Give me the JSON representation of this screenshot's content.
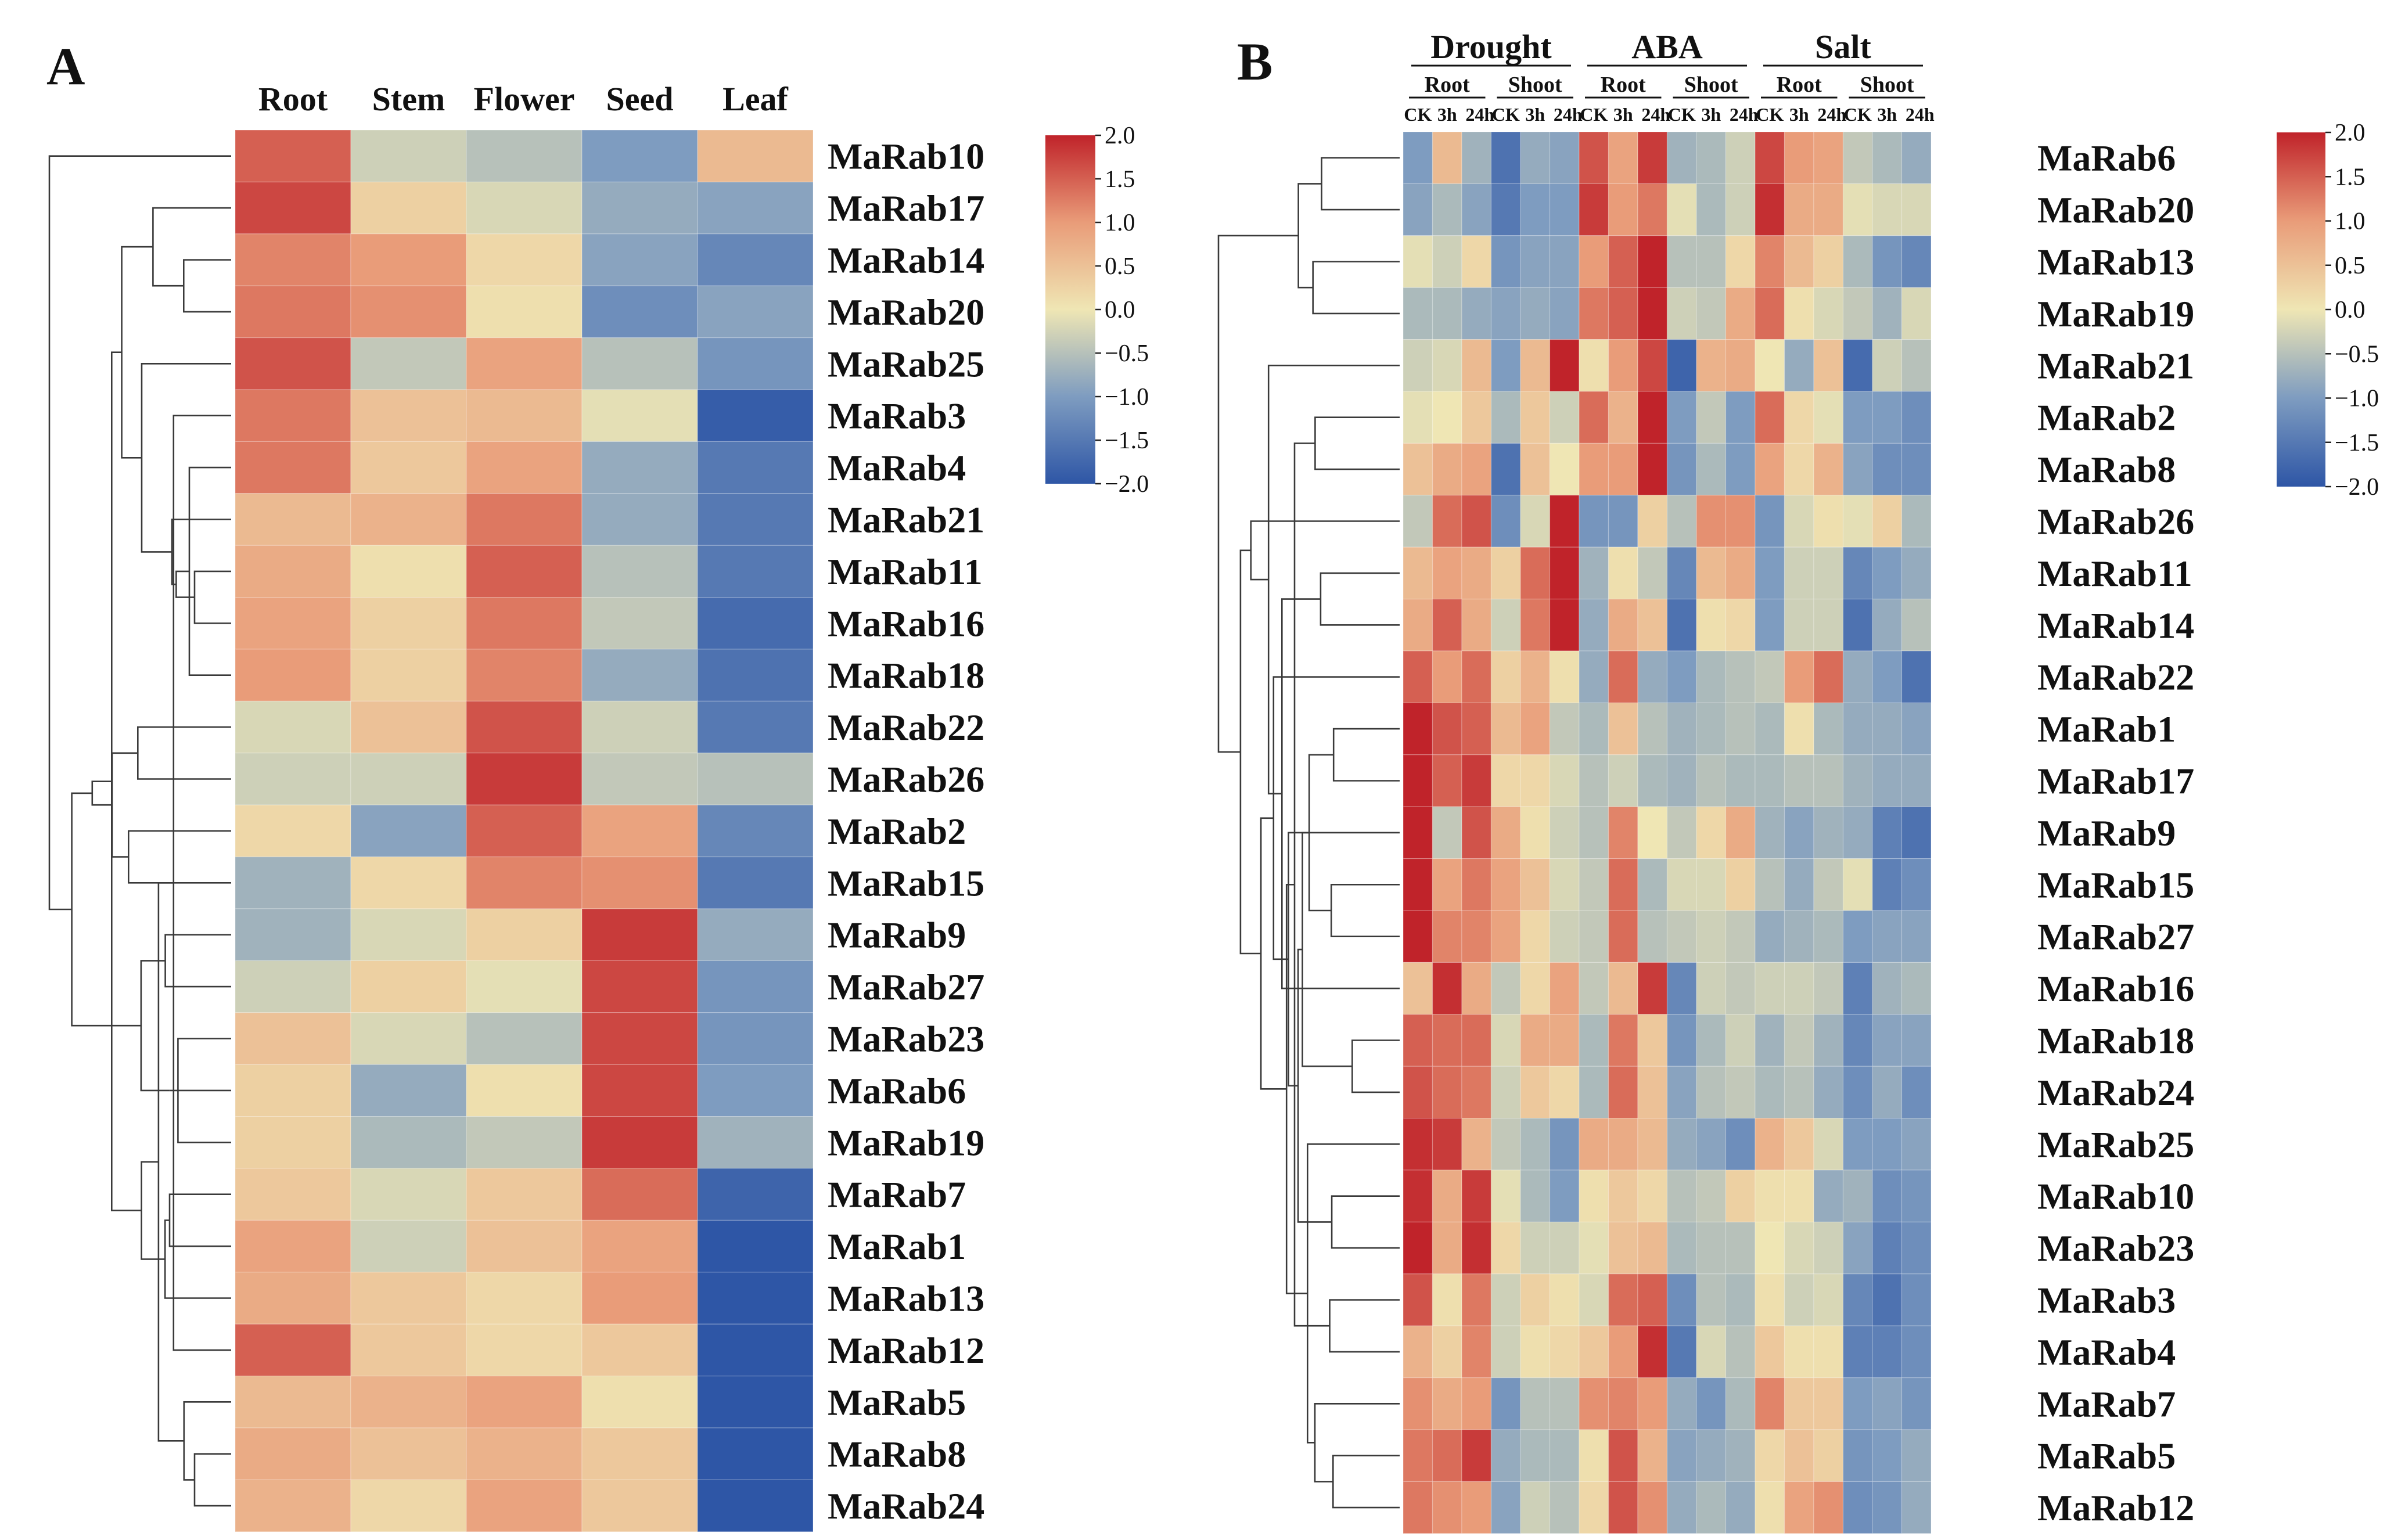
{
  "panel_a": {
    "label": "A",
    "columns": [
      "Root",
      "Stem",
      "Flower",
      "Seed",
      "Leaf"
    ],
    "rows": [
      "MaRab10",
      "MaRab17",
      "MaRab14",
      "MaRab20",
      "MaRab25",
      "MaRab3",
      "MaRab4",
      "MaRab21",
      "MaRab11",
      "MaRab16",
      "MaRab18",
      "MaRab22",
      "MaRab26",
      "MaRab2",
      "MaRab15",
      "MaRab9",
      "MaRab27",
      "MaRab23",
      "MaRab6",
      "MaRab19",
      "MaRab7",
      "MaRab1",
      "MaRab13",
      "MaRab12",
      "MaRab5",
      "MaRab8",
      "MaRab24"
    ]
  },
  "panel_b": {
    "label": "B",
    "treatments": [
      "Drought",
      "ABA",
      "Salt"
    ],
    "tissues": [
      "Root",
      "Shoot"
    ],
    "timepoints": [
      "CK",
      "3h",
      "24h"
    ],
    "rows": [
      "MaRab6",
      "MaRab20",
      "MaRab13",
      "MaRab19",
      "MaRab21",
      "MaRab2",
      "MaRab8",
      "MaRab26",
      "MaRab11",
      "MaRab14",
      "MaRab22",
      "MaRab1",
      "MaRab17",
      "MaRab9",
      "MaRab15",
      "MaRab27",
      "MaRab16",
      "MaRab18",
      "MaRab24",
      "MaRab25",
      "MaRab10",
      "MaRab23",
      "MaRab3",
      "MaRab4",
      "MaRab7",
      "MaRab5",
      "MaRab12"
    ]
  },
  "legend": {
    "ticks": [
      "2.0",
      "1.5",
      "1.0",
      "0.5",
      "0.0",
      "−0.5",
      "−1.0",
      "−1.5",
      "−2.0"
    ],
    "tick_values": [
      2.0,
      1.5,
      1.0,
      0.5,
      0.0,
      -0.5,
      -1.0,
      -1.5,
      -2.0
    ],
    "colors": [
      "#2e56a6",
      "#7e9cc0",
      "#efe6b4",
      "#e99c79",
      "#c0232a"
    ]
  },
  "chart_data": [
    {
      "type": "heatmap",
      "title": "A",
      "xlabel": "",
      "ylabel": "",
      "columns": [
        "Root",
        "Stem",
        "Flower",
        "Seed",
        "Leaf"
      ],
      "rows": [
        "MaRab10",
        "MaRab17",
        "MaRab14",
        "MaRab20",
        "MaRab25",
        "MaRab3",
        "MaRab4",
        "MaRab21",
        "MaRab11",
        "MaRab16",
        "MaRab18",
        "MaRab22",
        "MaRab26",
        "MaRab2",
        "MaRab15",
        "MaRab9",
        "MaRab27",
        "MaRab23",
        "MaRab6",
        "MaRab19",
        "MaRab7",
        "MaRab1",
        "MaRab13",
        "MaRab12",
        "MaRab5",
        "MaRab8",
        "MaRab24"
      ],
      "values": [
        [
          1.5,
          -0.3,
          -0.5,
          -1.0,
          0.6
        ],
        [
          1.7,
          0.3,
          -0.2,
          -0.8,
          -0.9
        ],
        [
          1.2,
          1.0,
          0.2,
          -0.9,
          -1.3
        ],
        [
          1.3,
          1.1,
          0.1,
          -1.2,
          -0.9
        ],
        [
          1.6,
          -0.4,
          0.9,
          -0.5,
          -1.1
        ],
        [
          1.3,
          0.5,
          0.6,
          -0.1,
          -1.9
        ],
        [
          1.3,
          0.4,
          0.9,
          -0.8,
          -1.5
        ],
        [
          0.6,
          0.7,
          1.3,
          -0.8,
          -1.5
        ],
        [
          0.8,
          0.1,
          1.5,
          -0.5,
          -1.5
        ],
        [
          0.9,
          0.3,
          1.3,
          -0.4,
          -1.7
        ],
        [
          1.0,
          0.3,
          1.2,
          -0.8,
          -1.6
        ],
        [
          -0.2,
          0.5,
          1.6,
          -0.3,
          -1.5
        ],
        [
          -0.3,
          -0.3,
          1.8,
          -0.4,
          -0.5
        ],
        [
          0.2,
          -0.9,
          1.5,
          0.9,
          -1.3
        ],
        [
          -0.7,
          0.2,
          1.2,
          1.1,
          -1.5
        ],
        [
          -0.7,
          -0.2,
          0.3,
          1.8,
          -0.8
        ],
        [
          -0.3,
          0.3,
          -0.1,
          1.7,
          -1.1
        ],
        [
          0.5,
          -0.2,
          -0.5,
          1.7,
          -1.1
        ],
        [
          0.3,
          -0.8,
          0.1,
          1.7,
          -1.0
        ],
        [
          0.3,
          -0.6,
          -0.4,
          1.8,
          -0.7
        ],
        [
          0.4,
          -0.2,
          0.4,
          1.4,
          -1.8
        ],
        [
          0.9,
          -0.3,
          0.5,
          0.9,
          -2.0
        ],
        [
          0.8,
          0.4,
          0.2,
          1.0,
          -2.0
        ],
        [
          1.5,
          0.4,
          0.2,
          0.4,
          -2.0
        ],
        [
          0.6,
          0.7,
          0.9,
          0.1,
          -2.0
        ],
        [
          0.8,
          0.5,
          0.7,
          0.4,
          -2.0
        ],
        [
          0.7,
          0.2,
          0.9,
          0.4,
          -2.0
        ]
      ],
      "value_range": [
        -2.0,
        2.0
      ],
      "legend": "top-right"
    },
    {
      "type": "heatmap",
      "title": "B",
      "xlabel": "",
      "ylabel": "",
      "column_groups": [
        {
          "treatment": "Drought",
          "tissue": "Root",
          "times": [
            "CK",
            "3h",
            "24h"
          ]
        },
        {
          "treatment": "Drought",
          "tissue": "Shoot",
          "times": [
            "CK",
            "3h",
            "24h"
          ]
        },
        {
          "treatment": "ABA",
          "tissue": "Root",
          "times": [
            "CK",
            "3h",
            "24h"
          ]
        },
        {
          "treatment": "ABA",
          "tissue": "Shoot",
          "times": [
            "CK",
            "3h",
            "24h"
          ]
        },
        {
          "treatment": "Salt",
          "tissue": "Root",
          "times": [
            "CK",
            "3h",
            "24h"
          ]
        },
        {
          "treatment": "Salt",
          "tissue": "Shoot",
          "times": [
            "CK",
            "3h",
            "24h"
          ]
        }
      ],
      "rows": [
        "MaRab6",
        "MaRab20",
        "MaRab13",
        "MaRab19",
        "MaRab21",
        "MaRab2",
        "MaRab8",
        "MaRab26",
        "MaRab11",
        "MaRab14",
        "MaRab22",
        "MaRab1",
        "MaRab17",
        "MaRab9",
        "MaRab15",
        "MaRab27",
        "MaRab16",
        "MaRab18",
        "MaRab24",
        "MaRab25",
        "MaRab10",
        "MaRab23",
        "MaRab3",
        "MaRab4",
        "MaRab7",
        "MaRab5",
        "MaRab12"
      ],
      "values": [
        [
          -1.0,
          0.6,
          -0.7,
          -1.6,
          -0.8,
          -0.9,
          1.6,
          0.9,
          1.8,
          -0.7,
          -0.6,
          -0.3,
          1.7,
          1.0,
          0.9,
          -0.4,
          -0.6,
          -0.8
        ],
        [
          -0.9,
          -0.6,
          -0.9,
          -1.5,
          -1.0,
          -1.0,
          1.8,
          1.0,
          1.3,
          -0.1,
          -0.6,
          -0.3,
          1.9,
          0.8,
          0.8,
          -0.1,
          -0.2,
          -0.2
        ],
        [
          -0.1,
          -0.3,
          0.2,
          -1.1,
          -0.9,
          -0.9,
          1.0,
          1.5,
          2.0,
          -0.5,
          -0.5,
          0.2,
          1.2,
          0.6,
          0.3,
          -0.6,
          -1.1,
          -1.3
        ],
        [
          -0.6,
          -0.6,
          -0.8,
          -0.9,
          -0.8,
          -0.9,
          1.3,
          1.5,
          2.0,
          -0.3,
          -0.4,
          0.8,
          1.4,
          0.1,
          -0.2,
          -0.4,
          -0.7,
          -0.2
        ],
        [
          -0.3,
          -0.2,
          0.6,
          -1.0,
          0.6,
          2.0,
          0.1,
          1.0,
          1.7,
          -1.8,
          0.7,
          0.8,
          0.0,
          -0.8,
          0.5,
          -1.7,
          -0.3,
          -0.5
        ],
        [
          -0.1,
          0.0,
          0.4,
          -0.6,
          0.4,
          -0.3,
          1.4,
          0.7,
          2.0,
          -1.0,
          -0.4,
          -1.0,
          1.4,
          0.2,
          -0.1,
          -1.0,
          -1.0,
          -1.2
        ],
        [
          0.5,
          0.8,
          0.9,
          -1.6,
          0.5,
          0.0,
          1.0,
          1.0,
          2.0,
          -1.1,
          -0.6,
          -1.0,
          0.9,
          0.2,
          0.7,
          -0.9,
          -1.2,
          -1.2
        ],
        [
          -0.4,
          1.4,
          1.6,
          -1.2,
          -0.2,
          2.0,
          -1.1,
          -1.1,
          0.3,
          -0.5,
          1.1,
          1.1,
          -1.1,
          -0.2,
          0.1,
          -0.1,
          0.3,
          -0.6
        ],
        [
          0.6,
          0.9,
          0.8,
          0.3,
          1.4,
          2.0,
          -0.7,
          0.1,
          -0.4,
          -1.3,
          0.6,
          0.8,
          -1.0,
          -0.3,
          -0.3,
          -1.3,
          -1.0,
          -0.8
        ],
        [
          0.8,
          1.5,
          0.8,
          -0.3,
          1.3,
          2.0,
          -0.8,
          0.8,
          0.5,
          -1.6,
          0.1,
          0.2,
          -1.0,
          -0.3,
          -0.3,
          -1.6,
          -0.8,
          -0.5
        ],
        [
          1.5,
          1.0,
          1.4,
          0.3,
          0.7,
          0.1,
          -0.8,
          1.4,
          -0.8,
          -1.0,
          -0.6,
          -0.5,
          -0.4,
          1.0,
          1.4,
          -0.8,
          -1.0,
          -1.6
        ],
        [
          2.0,
          1.6,
          1.5,
          0.6,
          0.9,
          -0.4,
          -0.6,
          0.5,
          -0.5,
          -0.7,
          -0.6,
          -0.5,
          -0.6,
          0.1,
          -0.6,
          -0.8,
          -0.8,
          -0.9
        ],
        [
          2.0,
          1.5,
          1.8,
          0.2,
          0.2,
          -0.2,
          -0.5,
          -0.3,
          -0.6,
          -0.7,
          -0.5,
          -0.6,
          -0.6,
          -0.5,
          -0.5,
          -0.7,
          -0.8,
          -0.8
        ],
        [
          2.0,
          -0.4,
          1.6,
          0.8,
          0.1,
          -0.3,
          -0.5,
          1.2,
          0.0,
          -0.4,
          0.2,
          0.8,
          -0.7,
          -0.9,
          -0.7,
          -0.8,
          -1.4,
          -1.6
        ],
        [
          2.0,
          0.9,
          1.3,
          0.9,
          0.5,
          -0.2,
          -0.4,
          1.4,
          -0.6,
          -0.2,
          -0.2,
          0.3,
          -0.5,
          -0.8,
          -0.4,
          -0.1,
          -1.4,
          -1.2
        ],
        [
          2.0,
          1.2,
          1.2,
          0.9,
          0.2,
          -0.3,
          -0.4,
          1.4,
          -0.5,
          -0.4,
          -0.3,
          -0.4,
          -0.8,
          -0.7,
          -0.6,
          -1.0,
          -0.9,
          -0.9
        ],
        [
          0.5,
          1.9,
          0.8,
          -0.4,
          0.2,
          0.9,
          -0.4,
          0.6,
          1.8,
          -1.3,
          -0.3,
          -0.4,
          -0.3,
          -0.3,
          -0.4,
          -1.4,
          -0.7,
          -0.6
        ],
        [
          1.5,
          1.4,
          1.4,
          -0.2,
          0.8,
          0.8,
          -0.6,
          1.3,
          0.4,
          -1.1,
          -0.6,
          -0.3,
          -0.7,
          -0.4,
          -0.7,
          -1.3,
          -0.9,
          -0.9
        ],
        [
          1.6,
          1.4,
          1.3,
          -0.3,
          0.4,
          0.2,
          -0.6,
          1.4,
          0.5,
          -0.9,
          -0.5,
          -0.4,
          -0.6,
          -0.5,
          -0.8,
          -1.2,
          -0.8,
          -1.2
        ],
        [
          1.9,
          1.8,
          0.7,
          -0.4,
          -0.6,
          -1.1,
          0.8,
          0.8,
          0.6,
          -0.8,
          -0.9,
          -1.2,
          0.7,
          0.4,
          -0.2,
          -1.0,
          -1.0,
          -0.9
        ],
        [
          1.9,
          0.8,
          1.8,
          -0.1,
          -0.6,
          -1.0,
          0.1,
          0.4,
          0.2,
          -0.5,
          -0.4,
          0.3,
          0.1,
          0.1,
          -0.8,
          -0.7,
          -1.2,
          -1.1
        ],
        [
          2.0,
          0.8,
          1.9,
          0.2,
          -0.3,
          -0.3,
          -0.1,
          0.5,
          0.6,
          -0.6,
          -0.5,
          -0.5,
          0.0,
          -0.2,
          -0.3,
          -0.9,
          -1.4,
          -1.2
        ],
        [
          1.6,
          0.1,
          1.3,
          -0.3,
          0.3,
          0.1,
          -0.2,
          1.4,
          1.5,
          -1.2,
          -0.5,
          -0.6,
          0.1,
          -0.3,
          -0.2,
          -1.3,
          -1.6,
          -1.2
        ],
        [
          0.7,
          0.3,
          1.2,
          -0.3,
          0.1,
          0.2,
          0.4,
          1.0,
          1.9,
          -1.5,
          -0.2,
          -0.5,
          0.4,
          0.1,
          0.1,
          -1.4,
          -1.4,
          -1.2
        ],
        [
          1.1,
          0.8,
          1.0,
          -1.1,
          -0.5,
          -0.5,
          1.1,
          1.2,
          1.0,
          -0.8,
          -1.1,
          -0.6,
          1.2,
          0.4,
          0.4,
          -1.0,
          -0.9,
          -1.1
        ],
        [
          1.3,
          1.4,
          1.8,
          -0.8,
          -0.6,
          -0.6,
          0.1,
          1.6,
          0.7,
          -0.9,
          -0.8,
          -0.7,
          0.2,
          0.5,
          0.3,
          -1.1,
          -1.0,
          -0.8
        ],
        [
          1.3,
          1.1,
          1.0,
          -0.9,
          -0.3,
          -0.5,
          0.2,
          1.6,
          1.1,
          -0.8,
          -0.6,
          -0.8,
          0.1,
          0.9,
          1.1,
          -1.2,
          -1.1,
          -0.8
        ]
      ],
      "value_range": [
        -2.0,
        2.0
      ],
      "legend": "top-right"
    }
  ]
}
